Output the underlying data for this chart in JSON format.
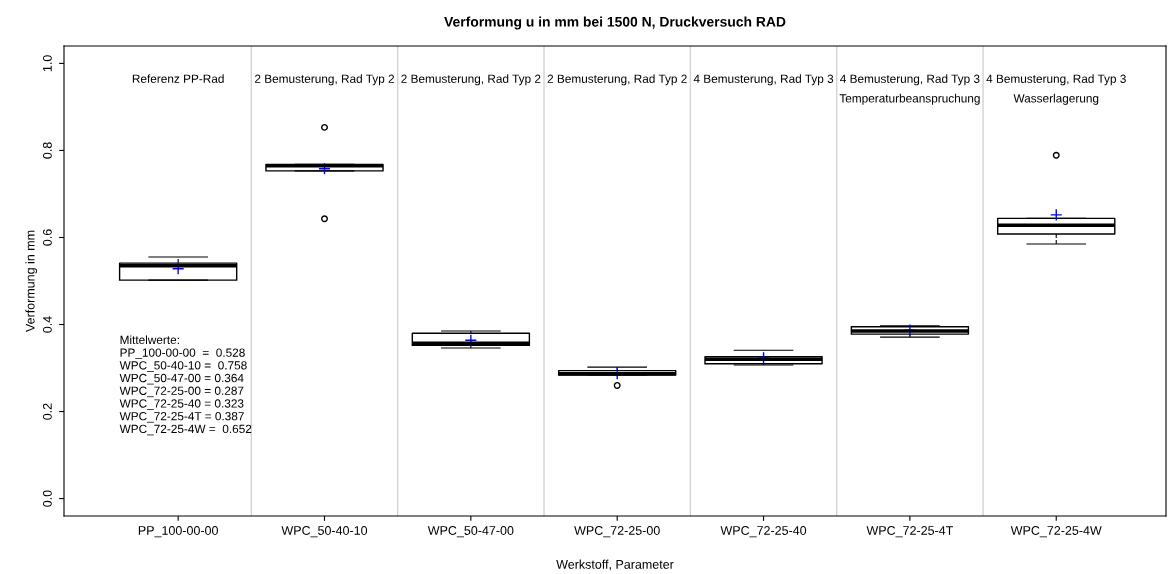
{
  "chart_data": {
    "type": "box",
    "title": "Verformung u in mm bei 1500 N, Druckversuch RAD",
    "xlabel": "Werkstoff, Parameter",
    "ylabel": "Verformung in mm",
    "categories": [
      "PP_100-00-00",
      "WPC_50-40-10",
      "WPC_50-47-00",
      "WPC_72-25-00",
      "WPC_72-25-40",
      "WPC_72-25-4T",
      "WPC_72-25-4W"
    ],
    "boxes": [
      {
        "low": 0.502,
        "q1": 0.502,
        "median": 0.535,
        "q3": 0.541,
        "high": 0.555,
        "mean": 0.528
      },
      {
        "low": 0.753,
        "q1": 0.753,
        "median": 0.765,
        "q3": 0.768,
        "high": 0.768,
        "mean": 0.758,
        "outliers": [
          0.853,
          0.643
        ]
      },
      {
        "low": 0.346,
        "q1": 0.352,
        "median": 0.357,
        "q3": 0.38,
        "high": 0.385,
        "mean": 0.364
      },
      {
        "low": 0.284,
        "q1": 0.284,
        "median": 0.287,
        "q3": 0.294,
        "high": 0.302,
        "mean": 0.287,
        "outliers": [
          0.26
        ]
      },
      {
        "low": 0.307,
        "q1": 0.31,
        "median": 0.32,
        "q3": 0.326,
        "high": 0.341,
        "mean": 0.323
      },
      {
        "low": 0.371,
        "q1": 0.378,
        "median": 0.385,
        "q3": 0.395,
        "high": 0.397,
        "mean": 0.387
      },
      {
        "low": 0.585,
        "q1": 0.608,
        "median": 0.628,
        "q3": 0.644,
        "high": 0.644,
        "mean": 0.652,
        "outliers": [
          0.789
        ]
      }
    ],
    "annotations": [
      "Referenz PP-Rad",
      "2 Bemusterung, Rad Typ 2",
      "2 Bemusterung, Rad Typ 2",
      "2 Bemusterung, Rad Typ 2",
      "4 Bemusterung, Rad Typ 3",
      "4 Bemusterung, Rad Typ 3\nTemperaturbeanspruchung",
      "4 Bemusterung, Rad Typ 3\nWasserlagerung",
      "Mittelwerte:\nPP_100-00-00  =  0.528\nWPC_50-40-10 =  0.758\nWPC_50-47-00 = 0.364\nWPC_72-25-00 = 0.287\nWPC_72-25-40 = 0.323\nWPC_72-25-4T = 0.387\nWPC_72-25-4W =  0.652"
    ],
    "ylim": [
      -0.04,
      1.04
    ],
    "yticks": [
      {
        "value": 0,
        "label": "0.0"
      },
      0.2,
      0.4,
      0.6,
      0.8,
      {
        "value": 1,
        "label": "1.0"
      }
    ],
    "marker": "circle",
    "grid": false,
    "legend": false
  }
}
